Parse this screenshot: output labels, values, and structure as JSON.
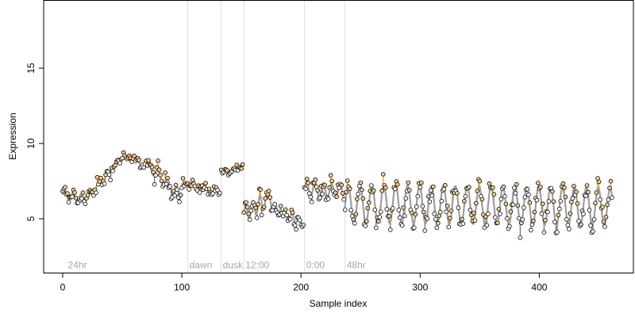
{
  "chart_data": {
    "type": "scatter",
    "xlabel": "Sample index",
    "ylabel": "Expression",
    "xlim": [
      -16,
      479
    ],
    "ylim": [
      1.4,
      19.5
    ],
    "xticks": [
      0,
      100,
      200,
      300,
      400
    ],
    "yticks": [
      5,
      10,
      15
    ],
    "grid": false,
    "colors": {
      "point_fill": "#FFCC88",
      "point_fill_low": "#FFFFFF",
      "point_stroke": "#000000",
      "fit_line": "#9E9E9E",
      "residual_above": "#F5A623",
      "residual_below": "#4F7FD0",
      "annotation_line": "#DDDDDD",
      "annotation_text": "#A6A6A6"
    },
    "annotations": [
      {
        "x": 3,
        "label": "24hr",
        "line": false
      },
      {
        "x": 105,
        "label": "dawn",
        "line": true
      },
      {
        "x": 133,
        "label": "dusk",
        "line": true
      },
      {
        "x": 152,
        "label": "12:00",
        "line": true
      },
      {
        "x": 203,
        "label": "0:00",
        "line": true
      },
      {
        "x": 237,
        "label": "48hr",
        "line": true
      }
    ],
    "n_points": 462,
    "segments": [
      {
        "from": 0,
        "to": 20,
        "start": 6.6,
        "end": 6.3,
        "amp": 0.3,
        "period": 7,
        "noise": 0.35
      },
      {
        "from": 20,
        "to": 50,
        "start": 6.3,
        "end": 9.1,
        "amp": 0.15,
        "period": 8,
        "noise": 0.35
      },
      {
        "from": 50,
        "to": 70,
        "start": 9.1,
        "end": 8.6,
        "amp": 0.1,
        "period": 9,
        "noise": 0.3
      },
      {
        "from": 70,
        "to": 100,
        "start": 8.6,
        "end": 6.5,
        "amp": 0.3,
        "period": 8,
        "noise": 0.45
      },
      {
        "from": 100,
        "to": 133,
        "start": 7.3,
        "end": 6.8,
        "amp": 0.1,
        "period": 9,
        "noise": 0.3
      },
      {
        "from": 133,
        "to": 152,
        "start": 8.0,
        "end": 8.4,
        "amp": 0.1,
        "period": 9,
        "noise": 0.2
      },
      {
        "from": 152,
        "to": 172,
        "start": 5.3,
        "end": 6.3,
        "amp": 0.6,
        "period": 6,
        "noise": 0.5
      },
      {
        "from": 172,
        "to": 185,
        "start": 6.3,
        "end": 5.2,
        "amp": 0.3,
        "period": 5,
        "noise": 0.3
      },
      {
        "from": 185,
        "to": 203,
        "start": 5.4,
        "end": 4.7,
        "amp": 0.3,
        "period": 6,
        "noise": 0.3
      },
      {
        "from": 203,
        "to": 237,
        "start": 7.0,
        "end": 6.8,
        "amp": 0.5,
        "period": 7,
        "noise": 0.4
      },
      {
        "from": 237,
        "to": 462,
        "start": 6.0,
        "end": 5.8,
        "amp": 1.3,
        "period": 10,
        "noise": 0.55
      }
    ]
  }
}
